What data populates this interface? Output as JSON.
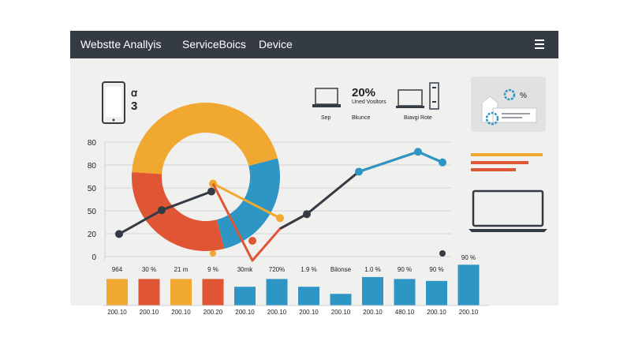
{
  "nav": {
    "items": [
      "Webstte Anallyis",
      "ServiceBoics",
      "Device"
    ],
    "menu_icon": "hamburger-icon"
  },
  "phone_widget": {
    "glyph": "ꭤ",
    "value": "3",
    "value_color": "#e05533"
  },
  "stats": {
    "percent": "20%",
    "percent_color": "#e05533",
    "percent_caption": "Uned Vosltors",
    "sep_label": "Sep",
    "bounce_label": "Bkunce",
    "bounce_rate_label": "Biavgi Rote"
  },
  "settings_card": {
    "percent": "%"
  },
  "colors": {
    "orange": "#f0a830",
    "blue": "#2d96c4",
    "red": "#e05533",
    "dark": "#353b45"
  },
  "chart_data": {
    "type": "bar",
    "y_tick_labels": [
      "80",
      "80",
      "50",
      "50",
      "20",
      "0"
    ],
    "donut": [
      {
        "color": "#f0a830",
        "value": 0.45
      },
      {
        "color": "#2d96c4",
        "value": 0.25
      },
      {
        "color": "#e05533",
        "value": 0.3
      }
    ],
    "line_dark": [
      20,
      38,
      52
    ],
    "line_orange": [
      58,
      32
    ],
    "line_blue_red": [
      30,
      39,
      73,
      89,
      81
    ],
    "line_blue": [
      73,
      89,
      81
    ],
    "bar_top_labels": [
      "964",
      "30 %",
      "21 m",
      "9 %",
      "30mk",
      "720%",
      "1.9 %",
      "Bilonse",
      "1.0 %",
      "90 %",
      "90 %",
      "90 %"
    ],
    "bars": [
      {
        "value": 41,
        "color": "#f0a830"
      },
      {
        "value": 41,
        "color": "#e05533"
      },
      {
        "value": 41,
        "color": "#f0a830"
      },
      {
        "value": 41,
        "color": "#e05533"
      },
      {
        "value": 29,
        "color": "#2d96c4"
      },
      {
        "value": 41,
        "color": "#2d96c4"
      },
      {
        "value": 29,
        "color": "#2d96c4"
      },
      {
        "value": 18,
        "color": "#2d96c4"
      },
      {
        "value": 44,
        "color": "#2d96c4"
      },
      {
        "value": 41,
        "color": "#2d96c4"
      },
      {
        "value": 38,
        "color": "#2d96c4"
      },
      {
        "value": 63,
        "color": "#2d96c4"
      }
    ],
    "bar_bottom_labels": [
      "200.10",
      "200.10",
      "200.10",
      "200.20",
      "200.10",
      "200.10",
      "200.10",
      "200.10",
      "200.10",
      "480.10",
      "200.10",
      "200.10"
    ]
  }
}
